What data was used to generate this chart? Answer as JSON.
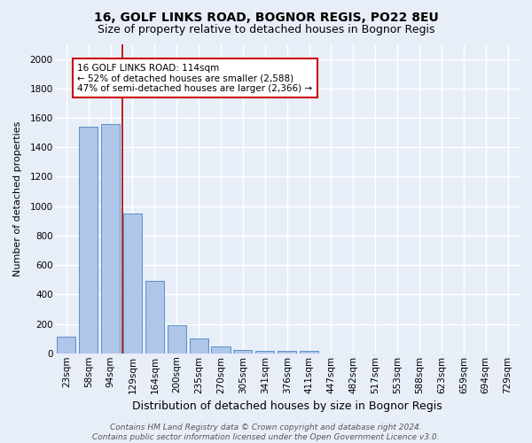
{
  "title1": "16, GOLF LINKS ROAD, BOGNOR REGIS, PO22 8EU",
  "title2": "Size of property relative to detached houses in Bognor Regis",
  "xlabel": "Distribution of detached houses by size in Bognor Regis",
  "ylabel": "Number of detached properties",
  "categories": [
    "23sqm",
    "58sqm",
    "94sqm",
    "129sqm",
    "164sqm",
    "200sqm",
    "235sqm",
    "270sqm",
    "305sqm",
    "341sqm",
    "376sqm",
    "411sqm",
    "447sqm",
    "482sqm",
    "517sqm",
    "553sqm",
    "588sqm",
    "623sqm",
    "659sqm",
    "694sqm",
    "729sqm"
  ],
  "values": [
    110,
    1540,
    1560,
    950,
    490,
    190,
    100,
    45,
    25,
    15,
    15,
    15,
    0,
    0,
    0,
    0,
    0,
    0,
    0,
    0,
    0
  ],
  "bar_color": "#aec6e8",
  "bar_edge_color": "#5b8fc9",
  "bg_color": "#e8eef8",
  "grid_color": "#ffffff",
  "red_line_x": 2.55,
  "annotation_text": "16 GOLF LINKS ROAD: 114sqm\n← 52% of detached houses are smaller (2,588)\n47% of semi-detached houses are larger (2,366) →",
  "annotation_box_color": "#ffffff",
  "annotation_box_edge": "#cc0000",
  "ylim": [
    0,
    2100
  ],
  "yticks": [
    0,
    200,
    400,
    600,
    800,
    1000,
    1200,
    1400,
    1600,
    1800,
    2000
  ],
  "footer": "Contains HM Land Registry data © Crown copyright and database right 2024.\nContains public sector information licensed under the Open Government Licence v3.0.",
  "title1_fontsize": 10,
  "title2_fontsize": 9,
  "xlabel_fontsize": 9,
  "ylabel_fontsize": 8,
  "tick_fontsize": 7.5,
  "footer_fontsize": 6.5
}
